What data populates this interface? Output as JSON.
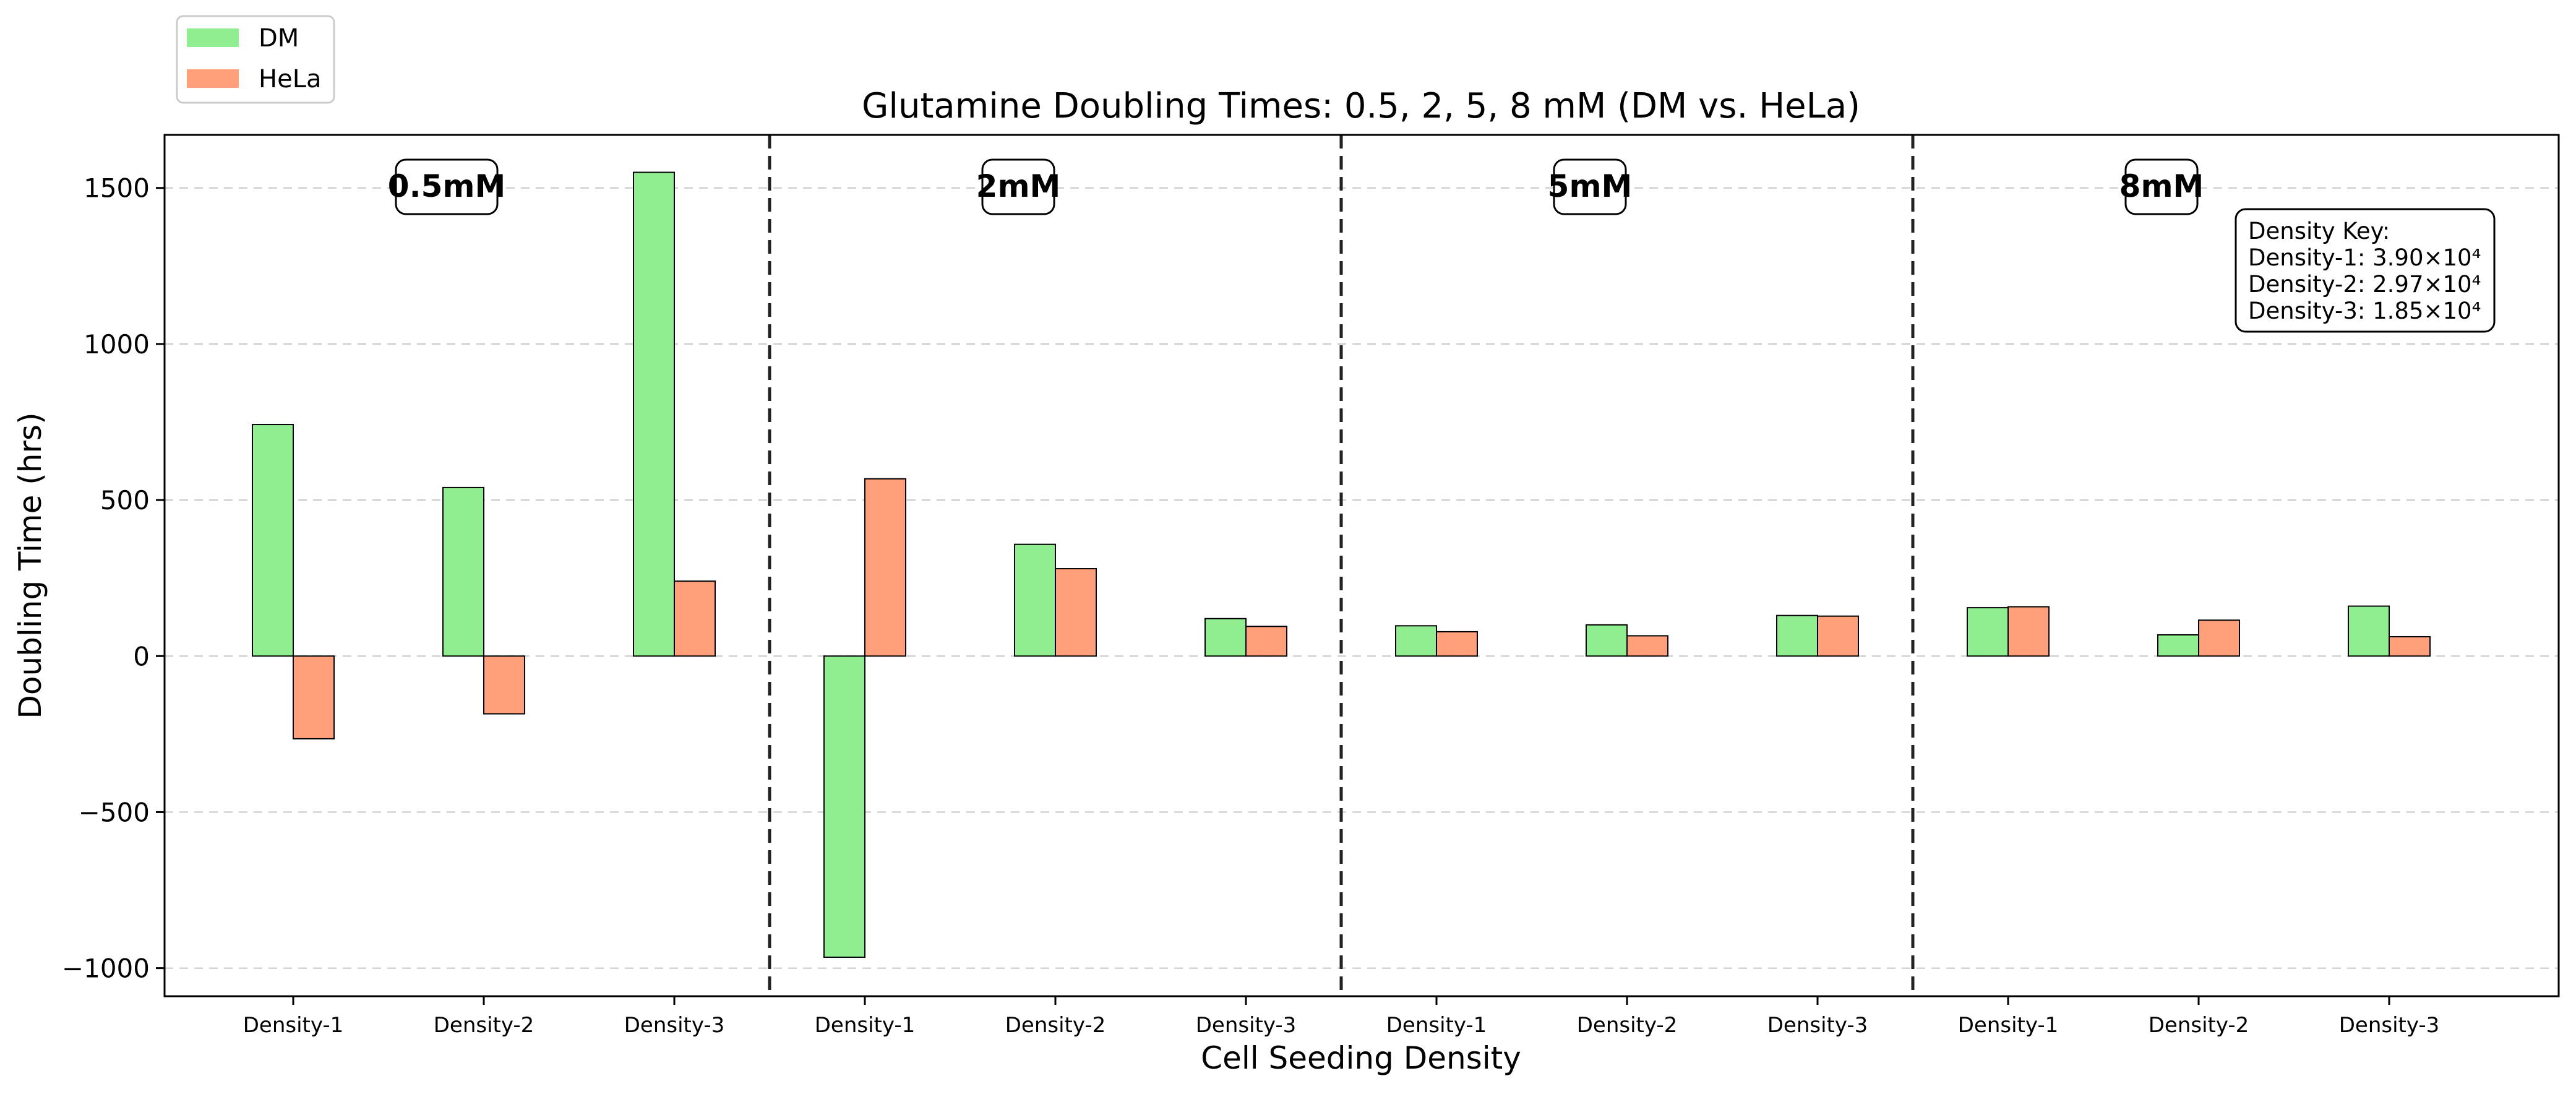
{
  "chart_data": {
    "type": "bar",
    "title": "Glutamine Doubling Times: 0.5, 2, 5, 8 mM (DM vs. HeLa)",
    "xlabel": "Cell Seeding Density",
    "ylabel": "Doubling Time (hrs)",
    "ylim": [
      -1090,
      1670
    ],
    "yticks": [
      -1000,
      -500,
      0,
      500,
      1000,
      1500
    ],
    "ytick_labels": [
      "−1000",
      "−500",
      "0",
      "500",
      "1000",
      "1500"
    ],
    "grid": "y-dashed",
    "legend_position": "top-left",
    "groups": [
      "0.5mM",
      "2mM",
      "5mM",
      "8mM"
    ],
    "categories": [
      "Density-1",
      "Density-2",
      "Density-3",
      "Density-1",
      "Density-2",
      "Density-3",
      "Density-1",
      "Density-2",
      "Density-3",
      "Density-1",
      "Density-2",
      "Density-3"
    ],
    "series": [
      {
        "name": "DM",
        "color": "#90ee90",
        "values": [
          742,
          540,
          1550,
          -965,
          358,
          120,
          97,
          100,
          130,
          155,
          68,
          160
        ]
      },
      {
        "name": "HeLa",
        "color": "#ffa07a",
        "values": [
          -265,
          -185,
          240,
          568,
          280,
          95,
          78,
          65,
          128,
          158,
          115,
          62
        ]
      }
    ],
    "annotation": {
      "title": "Density Key:",
      "lines": [
        "Density-1: 3.90×10⁴",
        "Density-2: 2.97×10⁴",
        "Density-3: 1.85×10⁴"
      ]
    }
  }
}
